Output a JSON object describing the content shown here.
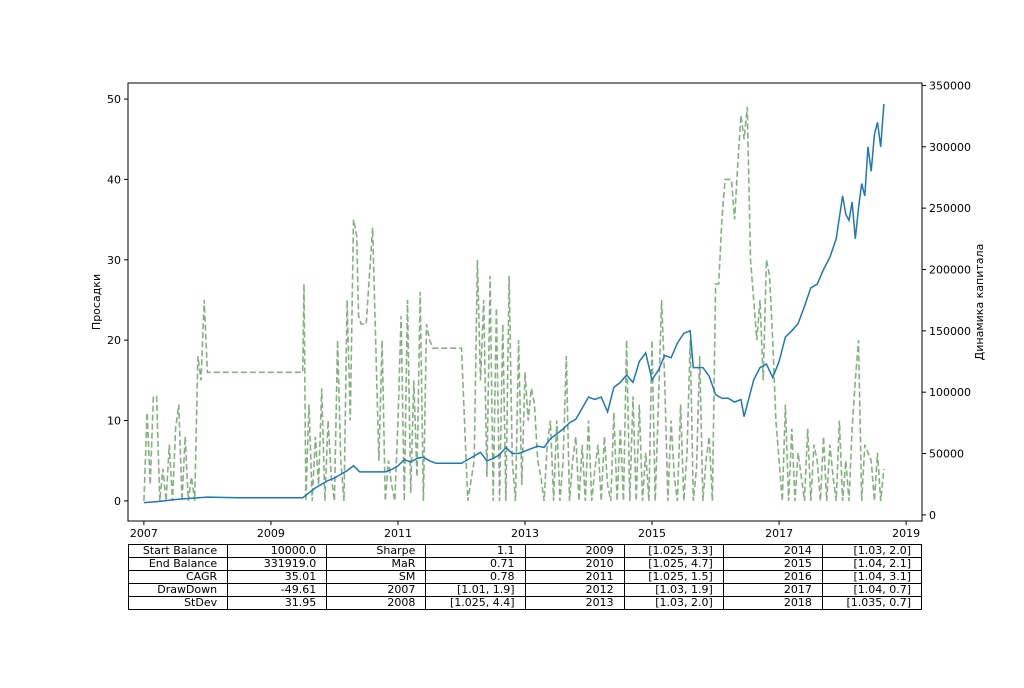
{
  "chart_data": {
    "type": "line",
    "x_ticks": [
      "2007",
      "2009",
      "2011",
      "2013",
      "2015",
      "2017",
      "2019"
    ],
    "x_range": [
      2006.75,
      2019.25
    ],
    "left_axis": {
      "label": "Просадки",
      "ticks": [
        "0",
        "10",
        "20",
        "30",
        "40",
        "50"
      ],
      "ylim": [
        -2.5,
        52
      ]
    },
    "right_axis": {
      "label": "Динамика капитала",
      "ticks": [
        "0",
        "50000",
        "100000",
        "150000",
        "200000",
        "250000",
        "300000",
        "350000"
      ],
      "ylim": [
        -5000,
        352000
      ]
    },
    "grid": false,
    "series": [
      {
        "axis": "left",
        "color": "#84b17f",
        "style": "dashed",
        "x": [
          2007.0,
          2007.05,
          2007.1,
          2007.15,
          2007.2,
          2007.25,
          2007.3,
          2007.35,
          2007.4,
          2007.45,
          2007.5,
          2007.55,
          2007.6,
          2007.65,
          2007.7,
          2007.75,
          2007.8,
          2007.85,
          2007.9,
          2007.95,
          2008.0,
          2008.3,
          2009.0,
          2009.5,
          2009.52,
          2009.55,
          2009.6,
          2009.65,
          2009.7,
          2009.75,
          2009.8,
          2009.85,
          2009.9,
          2009.95,
          2010.0,
          2010.05,
          2010.1,
          2010.15,
          2010.2,
          2010.25,
          2010.3,
          2010.35,
          2010.38,
          2010.42,
          2010.5,
          2010.6,
          2010.7,
          2010.75,
          2010.8,
          2010.85,
          2010.9,
          2010.95,
          2011.0,
          2011.05,
          2011.1,
          2011.15,
          2011.2,
          2011.25,
          2011.3,
          2011.35,
          2011.4,
          2011.45,
          2011.5,
          2011.55,
          2011.6,
          2011.62,
          2011.65,
          2011.75,
          2012.0,
          2012.1,
          2012.2,
          2012.25,
          2012.3,
          2012.35,
          2012.4,
          2012.45,
          2012.5,
          2012.55,
          2012.6,
          2012.65,
          2012.7,
          2012.75,
          2012.8,
          2012.85,
          2012.9,
          2012.95,
          2013.0,
          2013.05,
          2013.1,
          2013.15,
          2013.2,
          2013.25,
          2013.3,
          2013.35,
          2013.4,
          2013.45,
          2013.5,
          2013.55,
          2013.6,
          2013.65,
          2013.7,
          2013.75,
          2013.8,
          2013.85,
          2013.9,
          2013.95,
          2014.0,
          2014.05,
          2014.1,
          2014.15,
          2014.2,
          2014.25,
          2014.3,
          2014.35,
          2014.4,
          2014.45,
          2014.5,
          2014.55,
          2014.6,
          2014.65,
          2014.7,
          2014.75,
          2014.8,
          2014.85,
          2014.9,
          2014.95,
          2015.0,
          2015.05,
          2015.1,
          2015.15,
          2015.2,
          2015.25,
          2015.3,
          2015.35,
          2015.4,
          2015.45,
          2015.5,
          2015.55,
          2015.6,
          2015.65,
          2015.7,
          2015.75,
          2015.8,
          2015.85,
          2015.9,
          2015.95,
          2016.0,
          2016.05,
          2016.1,
          2016.15,
          2016.2,
          2016.25,
          2016.3,
          2016.35,
          2016.4,
          2016.45,
          2016.5,
          2016.55,
          2016.6,
          2016.65,
          2016.7,
          2016.75,
          2016.8,
          2016.85,
          2016.9,
          2016.95,
          2017.0,
          2017.05,
          2017.1,
          2017.15,
          2017.2,
          2017.25,
          2017.3,
          2017.35,
          2017.4,
          2017.45,
          2017.5,
          2017.55,
          2017.6,
          2017.65,
          2017.7,
          2017.75,
          2017.8,
          2017.85,
          2017.9,
          2017.95,
          2018.0,
          2018.05,
          2018.1,
          2018.15,
          2018.2,
          2018.25,
          2018.3,
          2018.35,
          2018.4,
          2018.45,
          2018.5,
          2018.55,
          2018.6,
          2018.65
        ],
        "y": [
          0,
          11,
          2,
          13,
          13,
          0,
          4,
          0,
          7,
          0,
          9,
          12,
          0,
          8,
          0,
          3,
          0,
          18,
          15,
          25,
          16,
          16,
          16,
          16,
          27,
          0,
          12,
          0,
          8,
          2,
          14,
          0,
          10,
          3,
          0,
          20,
          5,
          0,
          25,
          10,
          35,
          33,
          23,
          22,
          22,
          34,
          5,
          20,
          0,
          5,
          2,
          0,
          10,
          23,
          0,
          25,
          1,
          15,
          3,
          26,
          0,
          22,
          20,
          19,
          19,
          19,
          19,
          19,
          19,
          0,
          5,
          30,
          15,
          25,
          3,
          28,
          0,
          24,
          0,
          22,
          0,
          28,
          5,
          0,
          20,
          2,
          16,
          10,
          14,
          12,
          5,
          3,
          0,
          7,
          10,
          0,
          10,
          0,
          5,
          18,
          0,
          5,
          8,
          0,
          7,
          0,
          10,
          0,
          4,
          7,
          0,
          8,
          2,
          0,
          11,
          0,
          9,
          0,
          20,
          0,
          13,
          0,
          12,
          0,
          6,
          0,
          20,
          0,
          12,
          25,
          15,
          0,
          10,
          3,
          0,
          12,
          0,
          6,
          20,
          0,
          4,
          18,
          0,
          5,
          8,
          0,
          27,
          27,
          35,
          40,
          40,
          40,
          35,
          42,
          48,
          45,
          49,
          30,
          25,
          20,
          25,
          15,
          30,
          28,
          20,
          10,
          5,
          0,
          12,
          0,
          9,
          0,
          6,
          3,
          0,
          9,
          0,
          7,
          5,
          0,
          8,
          0,
          7,
          3,
          0,
          10,
          0,
          5,
          0,
          9,
          15,
          20,
          0,
          7,
          6,
          5,
          0,
          6,
          0,
          4
        ]
      },
      {
        "axis": "right",
        "color": "#1f77b4",
        "style": "solid",
        "x": [
          2007.0,
          2007.25,
          2007.5,
          2007.75,
          2008.0,
          2008.5,
          2009.0,
          2009.5,
          2009.6,
          2009.7,
          2009.8,
          2009.9,
          2010.0,
          2010.1,
          2010.2,
          2010.3,
          2010.4,
          2010.6,
          2010.8,
          2010.9,
          2011.0,
          2011.1,
          2011.2,
          2011.3,
          2011.4,
          2011.5,
          2011.6,
          2011.7,
          2011.8,
          2012.0,
          2012.2,
          2012.3,
          2012.4,
          2012.5,
          2012.6,
          2012.7,
          2012.8,
          2012.9,
          2013.0,
          2013.1,
          2013.2,
          2013.3,
          2013.4,
          2013.5,
          2013.6,
          2013.7,
          2013.8,
          2013.9,
          2014.0,
          2014.1,
          2014.2,
          2014.3,
          2014.4,
          2014.5,
          2014.6,
          2014.7,
          2014.8,
          2014.9,
          2015.0,
          2015.1,
          2015.2,
          2015.3,
          2015.4,
          2015.5,
          2015.6,
          2015.65,
          2015.7,
          2015.8,
          2015.9,
          2016.0,
          2016.1,
          2016.2,
          2016.3,
          2016.4,
          2016.45,
          2016.5,
          2016.6,
          2016.7,
          2016.8,
          2016.9,
          2017.0,
          2017.1,
          2017.2,
          2017.3,
          2017.4,
          2017.5,
          2017.6,
          2017.7,
          2017.8,
          2017.9,
          2018.0,
          2018.05,
          2018.1,
          2018.15,
          2018.2,
          2018.25,
          2018.3,
          2018.35,
          2018.4,
          2018.45,
          2018.5,
          2018.55,
          2018.6,
          2018.65
        ],
        "y": [
          10000,
          11000,
          12500,
          13500,
          14500,
          14000,
          14000,
          14000,
          18000,
          22000,
          25000,
          28000,
          30000,
          33000,
          36000,
          40000,
          35000,
          35000,
          35000,
          37000,
          40000,
          45000,
          43000,
          46000,
          47000,
          44000,
          42000,
          42000,
          42000,
          42000,
          48000,
          51000,
          44000,
          46000,
          49000,
          55000,
          50000,
          50000,
          52000,
          54000,
          56000,
          55000,
          62000,
          66000,
          70000,
          75000,
          78000,
          87000,
          96000,
          94000,
          96000,
          84000,
          104000,
          108000,
          114000,
          108000,
          125000,
          132000,
          110000,
          118000,
          130000,
          128000,
          140000,
          148000,
          150000,
          120000,
          120000,
          120000,
          113000,
          98000,
          95000,
          95000,
          92000,
          94000,
          80000,
          90000,
          110000,
          120000,
          123000,
          112000,
          125000,
          145000,
          150000,
          156000,
          170000,
          185000,
          188000,
          200000,
          210000,
          225000,
          260000,
          245000,
          240000,
          255000,
          225000,
          250000,
          270000,
          260000,
          300000,
          280000,
          310000,
          320000,
          300000,
          335000
        ]
      }
    ],
    "table": [
      [
        "Start Balance",
        "10000.0",
        "Sharpe",
        "1.1",
        "2009",
        "[1.025, 3.3]",
        "2014",
        "[1.03, 2.0]"
      ],
      [
        "End Balance",
        "331919.0",
        "MaR",
        "0.71",
        "2010",
        "[1.025, 4.7]",
        "2015",
        "[1.04, 2.1]"
      ],
      [
        "CAGR",
        "35.01",
        "SM",
        "0.78",
        "2011",
        "[1.025, 1.5]",
        "2016",
        "[1.04, 3.1]"
      ],
      [
        "DrawDown",
        "-49.61",
        "2007",
        "[1.01, 1.9]",
        "2012",
        "[1.03, 1.9]",
        "2017",
        "[1.04, 0.7]"
      ],
      [
        "StDev",
        "31.95",
        "2008",
        "[1.025, 4.4]",
        "2013",
        "[1.03, 2.0]",
        "2018",
        "[1.035, 0.7]"
      ]
    ]
  }
}
